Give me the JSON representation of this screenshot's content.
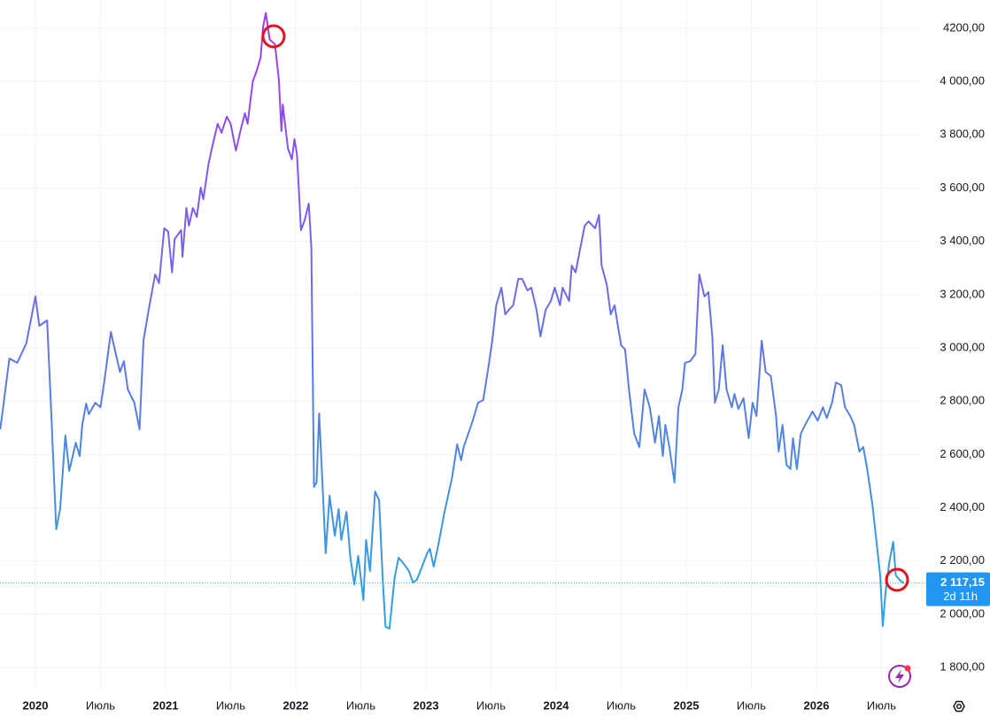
{
  "chart_data": {
    "type": "line",
    "gradient": [
      "#a23cf0",
      "#2aa6de"
    ],
    "x": [
      2019.73,
      2019.8,
      2019.86,
      2019.93,
      2020.0,
      2020.03,
      2020.09,
      2020.12,
      2020.16,
      2020.19,
      2020.23,
      2020.26,
      2020.31,
      2020.34,
      2020.36,
      2020.39,
      2020.41,
      2020.46,
      2020.5,
      2020.53,
      2020.58,
      2020.61,
      2020.65,
      2020.68,
      2020.71,
      2020.76,
      2020.8,
      2020.83,
      2020.87,
      2020.92,
      2020.95,
      2020.99,
      2021.02,
      2021.05,
      2021.07,
      2021.12,
      2021.13,
      2021.16,
      2021.18,
      2021.21,
      2021.24,
      2021.27,
      2021.29,
      2021.33,
      2021.36,
      2021.4,
      2021.43,
      2021.47,
      2021.5,
      2021.54,
      2021.58,
      2021.61,
      2021.63,
      2021.67,
      2021.7,
      2021.73,
      2021.75,
      2021.77,
      2021.8,
      2021.84,
      2021.87,
      2021.89,
      2021.9,
      2021.94,
      2021.97,
      2021.99,
      2022.01,
      2022.04,
      2022.07,
      2022.1,
      2022.12,
      2022.14,
      2022.16,
      2022.18,
      2022.2,
      2022.23,
      2022.26,
      2022.3,
      2022.33,
      2022.35,
      2022.39,
      2022.42,
      2022.45,
      2022.48,
      2022.52,
      2022.54,
      2022.57,
      2022.61,
      2022.64,
      2022.67,
      2022.69,
      2022.72,
      2022.76,
      2022.79,
      2022.82,
      2022.87,
      2022.9,
      2022.93,
      2022.97,
      2023.01,
      2023.03,
      2023.06,
      2023.1,
      2023.14,
      2023.2,
      2023.24,
      2023.27,
      2023.29,
      2023.33,
      2023.36,
      2023.4,
      2023.44,
      2023.48,
      2023.51,
      2023.54,
      2023.58,
      2023.61,
      2023.65,
      2023.67,
      2023.71,
      2023.74,
      2023.78,
      2023.81,
      2023.85,
      2023.88,
      2023.92,
      2023.96,
      2023.99,
      2024.03,
      2024.05,
      2024.1,
      2024.12,
      2024.15,
      2024.18,
      2024.22,
      2024.25,
      2024.3,
      2024.33,
      2024.35,
      2024.39,
      2024.42,
      2024.45,
      2024.48,
      2024.5,
      2024.53,
      2024.56,
      2024.6,
      2024.64,
      2024.68,
      2024.72,
      2024.76,
      2024.79,
      2024.82,
      2024.84,
      2024.87,
      2024.91,
      2024.94,
      2024.97,
      2024.99,
      2025.03,
      2025.07,
      2025.1,
      2025.14,
      2025.17,
      2025.2,
      2025.22,
      2025.25,
      2025.28,
      2025.31,
      2025.35,
      2025.37,
      2025.4,
      2025.44,
      2025.48,
      2025.51,
      2025.54,
      2025.58,
      2025.61,
      2025.65,
      2025.69,
      2025.71,
      2025.74,
      2025.77,
      2025.8,
      2025.82,
      2025.85,
      2025.88,
      2025.92,
      2025.97,
      2026.01,
      2026.05,
      2026.08,
      2026.12,
      2026.15,
      2026.19,
      2026.22,
      2026.26,
      2026.29,
      2026.33,
      2026.36,
      2026.39,
      2026.43,
      2026.46,
      2026.49,
      2026.51,
      2026.53,
      2026.56,
      2026.59,
      2026.61,
      2026.64,
      2026.67
    ],
    "values": [
      2694,
      2960,
      2944,
      3017,
      3193,
      3083,
      3103,
      2777,
      2319,
      2395,
      2671,
      2538,
      2644,
      2594,
      2711,
      2791,
      2751,
      2794,
      2777,
      2877,
      3060,
      2993,
      2910,
      2950,
      2844,
      2794,
      2694,
      3027,
      3143,
      3276,
      3243,
      3449,
      3436,
      3283,
      3409,
      3442,
      3342,
      3525,
      3459,
      3525,
      3492,
      3602,
      3558,
      3691,
      3758,
      3841,
      3808,
      3868,
      3841,
      3741,
      3824,
      3881,
      3841,
      4001,
      4040,
      4090,
      4207,
      4257,
      4157,
      4140,
      4007,
      3814,
      3914,
      3748,
      3708,
      3784,
      3725,
      3442,
      3482,
      3542,
      3376,
      2478,
      2495,
      2754,
      2545,
      2229,
      2445,
      2295,
      2395,
      2279,
      2385,
      2212,
      2112,
      2219,
      2053,
      2279,
      2162,
      2461,
      2428,
      2112,
      1953,
      1946,
      2139,
      2212,
      2196,
      2162,
      2119,
      2129,
      2179,
      2229,
      2246,
      2179,
      2272,
      2378,
      2511,
      2638,
      2578,
      2628,
      2684,
      2727,
      2794,
      2804,
      2927,
      3027,
      3160,
      3226,
      3126,
      3150,
      3160,
      3259,
      3259,
      3216,
      3226,
      3143,
      3043,
      3143,
      3176,
      3226,
      3160,
      3226,
      3176,
      3309,
      3283,
      3359,
      3459,
      3475,
      3449,
      3499,
      3309,
      3236,
      3126,
      3160,
      3067,
      3010,
      2994,
      2844,
      2678,
      2628,
      2844,
      2777,
      2644,
      2744,
      2594,
      2711,
      2628,
      2495,
      2777,
      2844,
      2944,
      2950,
      2977,
      3276,
      3193,
      3209,
      3043,
      2794,
      2844,
      3010,
      2844,
      2777,
      2827,
      2771,
      2811,
      2661,
      2794,
      2744,
      3027,
      2910,
      2894,
      2744,
      2611,
      2711,
      2561,
      2545,
      2661,
      2545,
      2678,
      2717,
      2761,
      2727,
      2777,
      2737,
      2794,
      2870,
      2860,
      2777,
      2744,
      2711,
      2611,
      2628,
      2545,
      2412,
      2279,
      2146,
      1956,
      2079,
      2196,
      2272,
      2146,
      2129,
      2117.15
    ],
    "xlim": [
      2019.728,
      2026.803
    ],
    "ylim": [
      1714,
      4306
    ],
    "xticks": [
      2020,
      {
        "value": 2020.5,
        "label": "Июль"
      },
      2021,
      {
        "value": 2021.5,
        "label": "Июль"
      },
      2022,
      {
        "value": 2022.5,
        "label": "Июль"
      },
      2023,
      {
        "value": 2023.5,
        "label": "Июль"
      },
      2024,
      {
        "value": 2024.5,
        "label": "Июль"
      },
      2025,
      {
        "value": 2025.5,
        "label": "Июль"
      },
      2026,
      {
        "value": 2026.5,
        "label": "Июль"
      }
    ],
    "yticks": [
      {
        "value": 1800,
        "label": "1 800,00"
      },
      {
        "value": 2000,
        "label": "2 000,00"
      },
      {
        "value": 2200,
        "label": "2 200,00"
      },
      {
        "value": 2400,
        "label": "2 400,00"
      },
      {
        "value": 2600,
        "label": "2 600,00"
      },
      {
        "value": 2800,
        "label": "2 800,00"
      },
      {
        "value": 3000,
        "label": "3 000,00"
      },
      {
        "value": 3200,
        "label": "3 200,00"
      },
      {
        "value": 3400,
        "label": "3 400,00"
      },
      {
        "value": 3600,
        "label": "3 600,00"
      },
      {
        "value": 3800,
        "label": "3 800,00"
      },
      {
        "value": 4000,
        "label": "4 000,00"
      },
      {
        "value": 4200,
        "label": "4200,00"
      }
    ],
    "grid": true,
    "last_price": {
      "value": 2117.15,
      "label": "2 117,15"
    },
    "countdown": "2d 11h",
    "price_label_color": "#2196f3"
  }
}
